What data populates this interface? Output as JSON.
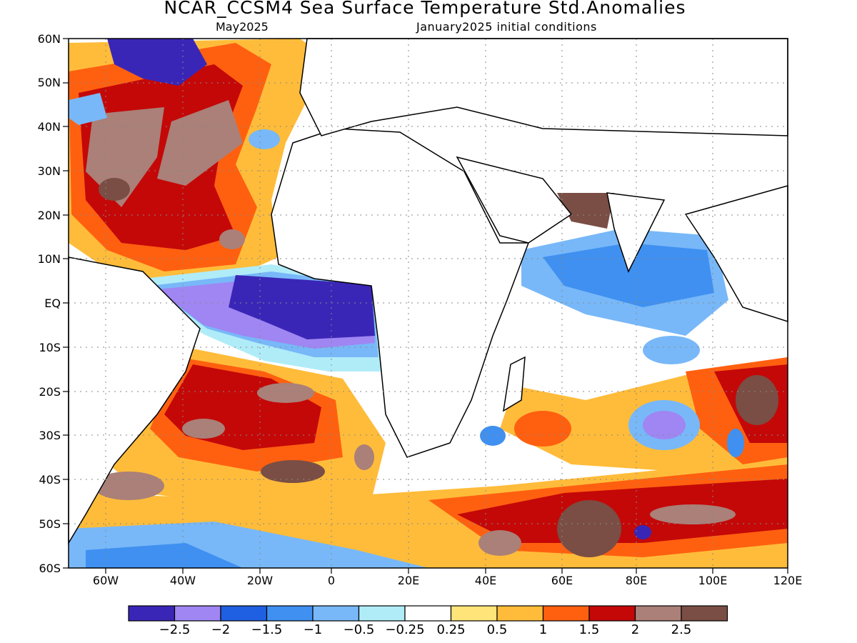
{
  "title": "NCAR_CCSM4 Sea Surface Temperature Std.Anomalies",
  "subtitle_left": "May2025",
  "subtitle_right": "January2025 initial conditions",
  "lat_labels": [
    "60N",
    "50N",
    "40N",
    "30N",
    "20N",
    "10N",
    "EQ",
    "10S",
    "20S",
    "30S",
    "40S",
    "50S",
    "60S"
  ],
  "lon_labels": [
    "60W",
    "40W",
    "20W",
    "0",
    "20E",
    "40E",
    "60E",
    "80E",
    "100E",
    "120E"
  ],
  "colorbar": {
    "colors": [
      "#3a26b6",
      "#9f86f2",
      "#1f60e2",
      "#3f90f0",
      "#78b8f8",
      "#b0ecf8",
      "#ffffff",
      "#ffe47a",
      "#ffbc3a",
      "#ff6010",
      "#c40808",
      "#aa8078",
      "#7a4e44"
    ],
    "labels": [
      "−2.5",
      "−2",
      "−1.5",
      "−1",
      "−0.5",
      "−0.25",
      "0.25",
      "0.5",
      "1",
      "1.5",
      "2",
      "2.5"
    ]
  }
}
